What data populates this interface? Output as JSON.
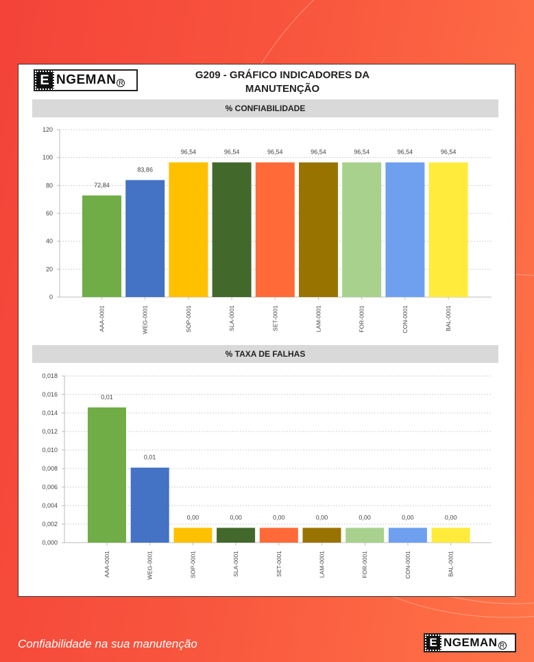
{
  "header": {
    "title_line1": "G209 - GRÁFICO INDICADORES DA",
    "title_line2": "MANUTENÇÃO",
    "logo_text": "ENGEMAN"
  },
  "footer": {
    "tagline": "Confiabilidade na sua manutenção",
    "logo_text": "ENGEMAN"
  },
  "colors": {
    "bars": [
      "#70ad47",
      "#4472c4",
      "#ffc000",
      "#43682b",
      "#ff6a38",
      "#997300",
      "#a9d18e",
      "#6fa0f0",
      "#ffeb3b"
    ]
  },
  "chart_data": [
    {
      "type": "bar",
      "title": "% CONFIABILIDADE",
      "categories": [
        "AAA-0001",
        "WEG-0001",
        "SOP-0001",
        "SLA-0001",
        "SET-0001",
        "LAM-0001",
        "FOR-0001",
        "CON-0001",
        "BAL-0001"
      ],
      "values": [
        72.84,
        83.86,
        96.54,
        96.54,
        96.54,
        96.54,
        96.54,
        96.54,
        96.54
      ],
      "data_labels": [
        "72,84",
        "83,86",
        "96,54",
        "96,54",
        "96,54",
        "96,54",
        "96,54",
        "96,54",
        "96,54"
      ],
      "ylim": [
        0,
        120
      ],
      "yticks": [
        "0",
        "20",
        "40",
        "60",
        "80",
        "100",
        "120"
      ],
      "grid": true
    },
    {
      "type": "bar",
      "title": "% TAXA DE FALHAS",
      "categories": [
        "AAA-0001",
        "WEG-0001",
        "SOP-0001",
        "SLA-0001",
        "SET-0001",
        "LAM-0001",
        "FOR-0001",
        "CON-0001",
        "BAL-0001"
      ],
      "values": [
        0.0146,
        0.0081,
        0.0016,
        0.0016,
        0.0016,
        0.0016,
        0.0016,
        0.0016,
        0.0016
      ],
      "data_labels": [
        "0,01",
        "0,01",
        "0,00",
        "0,00",
        "0,00",
        "0,00",
        "0,00",
        "0,00",
        "0,00"
      ],
      "ylim": [
        0,
        0.018
      ],
      "yticks": [
        "0,000",
        "0,002",
        "0,004",
        "0,006",
        "0,008",
        "0,010",
        "0,012",
        "0,014",
        "0,016",
        "0,018"
      ],
      "grid": true
    }
  ]
}
